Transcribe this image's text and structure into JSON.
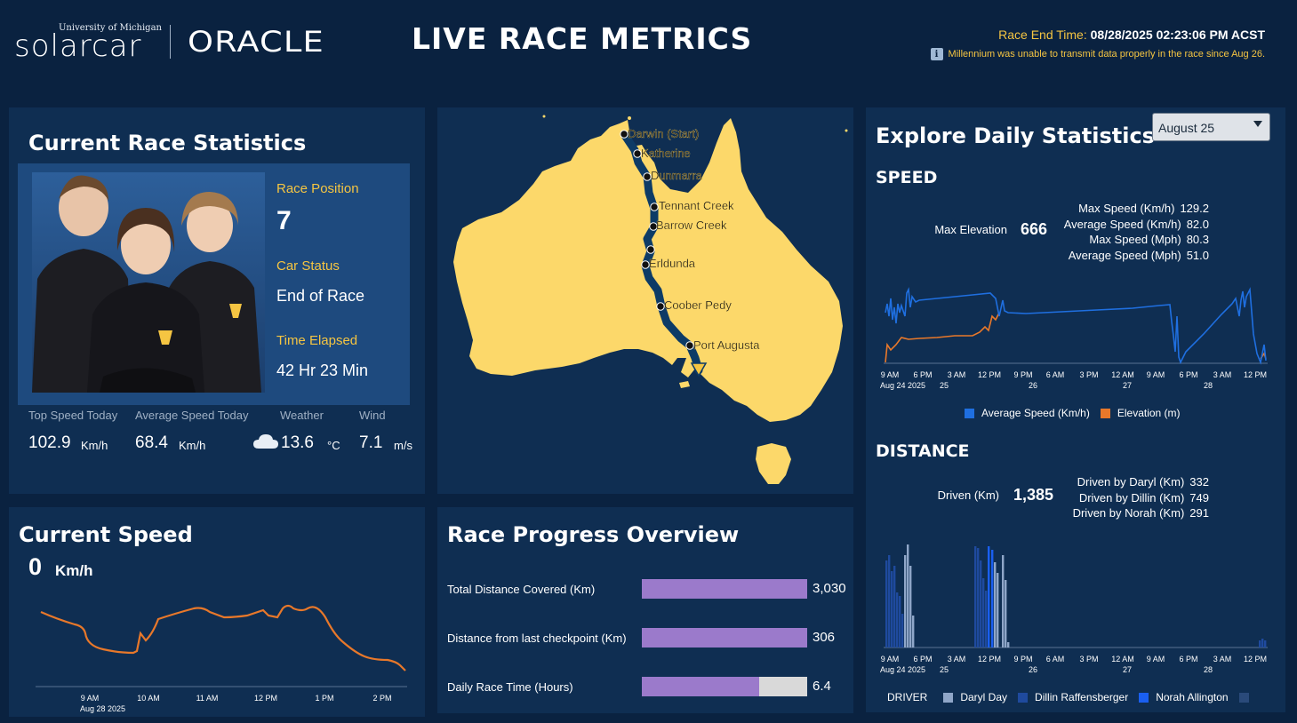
{
  "header": {
    "logo_small": "University of Michigan",
    "logo_main": "solarcar",
    "logo_partner": "ORACLE",
    "title": "LIVE RACE METRICS",
    "race_end_label": "Race End Time:",
    "race_end_value": "08/28/2025 02:23:06 PM ACST",
    "notice": "Millennium was unable to transmit data properly in the race since Aug 26.",
    "notice_icon": "info-icon"
  },
  "race_stats": {
    "title": "Current Race Statistics",
    "position_label": "Race Position",
    "position_value": "7",
    "status_label": "Car Status",
    "status_value": "End of Race",
    "elapsed_label": "Time Elapsed",
    "elapsed_value": "42 Hr 23 Min",
    "top_speed_label": "Top Speed Today",
    "top_speed_value": "102.9",
    "top_speed_unit": "Km/h",
    "avg_speed_label": "Average Speed Today",
    "avg_speed_value": "68.4",
    "avg_speed_unit": "Km/h",
    "weather_label": "Weather",
    "weather_value": "13.6",
    "weather_unit": "°C",
    "weather_icon": "cloud-icon",
    "wind_label": "Wind",
    "wind_value": "7.1",
    "wind_unit": "m/s"
  },
  "map": {
    "checkpoints": [
      "Darwin (Start)",
      "Katherine",
      "Dunmarra",
      "Tennant Creek",
      "Barrow Creek",
      "Erldunda",
      "Coober Pedy",
      "Port Augusta"
    ],
    "land_color": "#fcd86a",
    "route_color": "#0d3b66"
  },
  "explore": {
    "title": "Explore Daily Statistics",
    "date_selected": "August 25",
    "speed_heading": "SPEED",
    "max_elev_label": "Max Elevation",
    "max_elev_value": "666",
    "speed_stats": [
      {
        "label": "Max Speed (Km/h)",
        "value": "129.2"
      },
      {
        "label": "Average Speed (Km/h)",
        "value": "82.0"
      },
      {
        "label": "Max Speed (Mph)",
        "value": "80.3"
      },
      {
        "label": "Average Speed (Mph)",
        "value": "51.0"
      }
    ],
    "x_ticks": [
      "9 AM",
      "6 PM",
      "3 AM",
      "12 PM",
      "9 PM",
      "6 AM",
      "3 PM",
      "12 AM",
      "9 AM",
      "6 PM",
      "3 AM",
      "12 PM"
    ],
    "x_subticks": {
      "first": "Aug 24 2025",
      "d25": "25",
      "d26": "26",
      "d27": "27",
      "d28": "28"
    },
    "speed_legend": [
      "Average Speed (Km/h)",
      "Elevation (m)"
    ],
    "distance_heading": "DISTANCE",
    "driven_label": "Driven (Km)",
    "driven_value": "1,385",
    "driver_stats": [
      {
        "label": "Driven by Daryl (Km)",
        "value": "332"
      },
      {
        "label": "Driven by Dillin (Km)",
        "value": "749"
      },
      {
        "label": "Driven by Norah (Km)",
        "value": "291"
      }
    ],
    "driver_legend_title": "DRIVER",
    "drivers": [
      "Daryl Day",
      "Dillin Raffensberger",
      "Norah Allington"
    ],
    "colors": {
      "speed": "#1f6fe0",
      "elevation": "#e8782a",
      "daryl": "#8fa6c8",
      "dillin": "#1f4a9e",
      "norah": "#1a5ff0",
      "other": "#2a4a7a"
    }
  },
  "current_speed": {
    "title": "Current Speed",
    "value": "0",
    "unit": "Km/h",
    "x_ticks": [
      "9 AM",
      "10 AM",
      "11 AM",
      "12 PM",
      "1 PM",
      "2 PM"
    ],
    "x_sub": "Aug 28 2025",
    "line_color": "#e8782a"
  },
  "progress": {
    "title": "Race Progress Overview",
    "rows": [
      {
        "label": "Total Distance Covered (Km)",
        "value": "3,030",
        "fill": 1.0
      },
      {
        "label": "Distance from last checkpoint (Km)",
        "value": "306",
        "fill": 1.0
      },
      {
        "label": "Daily Race Time (Hours)",
        "value": "6.4",
        "fill": 0.71
      }
    ],
    "bar_color": "#9b7acb"
  }
}
